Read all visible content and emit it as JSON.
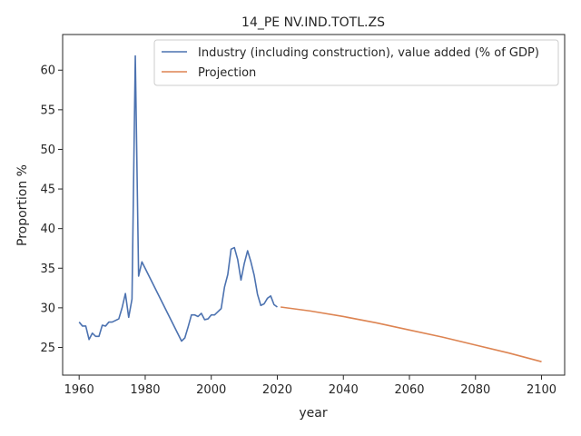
{
  "chart_data": {
    "type": "line",
    "title": "14_PE NV.IND.TOTL.ZS",
    "xlabel": "year",
    "ylabel": "Proportion %",
    "xlim": [
      1955,
      2107
    ],
    "ylim": [
      21.5,
      64.5
    ],
    "xticks": [
      1960,
      1980,
      2000,
      2020,
      2040,
      2060,
      2080,
      2100
    ],
    "yticks": [
      25,
      30,
      35,
      40,
      45,
      50,
      55,
      60
    ],
    "grid": false,
    "legend_position": "top-right",
    "series": [
      {
        "name": "Industry (including construction), value added (% of GDP)",
        "color": "#4c72b0",
        "x": [
          1960,
          1961,
          1962,
          1963,
          1964,
          1965,
          1966,
          1967,
          1968,
          1969,
          1970,
          1971,
          1972,
          1973,
          1974,
          1975,
          1976,
          1977,
          1978,
          1979,
          1991,
          1992,
          1993,
          1994,
          1995,
          1996,
          1997,
          1998,
          1999,
          2000,
          2001,
          2002,
          2003,
          2004,
          2005,
          2006,
          2007,
          2008,
          2009,
          2010,
          2011,
          2012,
          2013,
          2014,
          2015,
          2016,
          2017,
          2018,
          2019,
          2020
        ],
        "y": [
          28.2,
          27.7,
          27.7,
          26.0,
          26.8,
          26.4,
          26.4,
          27.8,
          27.7,
          28.2,
          28.2,
          28.4,
          28.6,
          30.0,
          31.8,
          28.8,
          31.1,
          61.8,
          34.0,
          35.8,
          25.8,
          26.2,
          27.6,
          29.1,
          29.1,
          28.9,
          29.3,
          28.5,
          28.6,
          29.1,
          29.1,
          29.5,
          29.9,
          32.6,
          34.2,
          37.4,
          37.6,
          36.1,
          33.5,
          35.6,
          37.2,
          35.8,
          34.1,
          31.7,
          30.3,
          30.5,
          31.2,
          31.5,
          30.4,
          30.1
        ]
      },
      {
        "name": "Projection",
        "color": "#dd8452",
        "x": [
          2021,
          2030,
          2040,
          2050,
          2060,
          2070,
          2080,
          2090,
          2100
        ],
        "y": [
          30.1,
          29.6,
          28.9,
          28.1,
          27.2,
          26.3,
          25.3,
          24.3,
          23.2
        ]
      }
    ]
  }
}
